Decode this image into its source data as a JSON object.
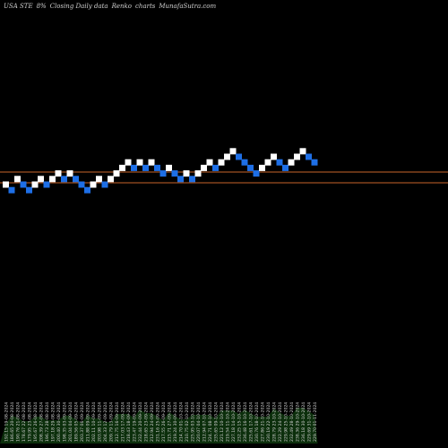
{
  "header": {
    "symbol": "USA STE",
    "change": "8%",
    "closing": "Closing Daily data",
    "renko": "Renko",
    "charts": "charts",
    "site": "MunafaSutra.com"
  },
  "colors": {
    "background": "#000000",
    "up_brick": "#ffffff",
    "down_brick": "#1e6fe6",
    "line": "#c8642a",
    "volume": "#0c2f0c",
    "label": "#d0d0d0"
  },
  "chart_data": {
    "type": "renko",
    "title": "USA STE 8% Closing Daily data Renko charts MunafaSutra.com",
    "price_lines": [
      "upper",
      "lower"
    ],
    "bricks": [
      {
        "dir": "up",
        "level": 0
      },
      {
        "dir": "down",
        "level": -1
      },
      {
        "dir": "up",
        "level": 1
      },
      {
        "dir": "down",
        "level": 0
      },
      {
        "dir": "down",
        "level": -1
      },
      {
        "dir": "up",
        "level": 0
      },
      {
        "dir": "up",
        "level": 1
      },
      {
        "dir": "down",
        "level": 0
      },
      {
        "dir": "up",
        "level": 1
      },
      {
        "dir": "up",
        "level": 2
      },
      {
        "dir": "down",
        "level": 1
      },
      {
        "dir": "up",
        "level": 2
      },
      {
        "dir": "down",
        "level": 1
      },
      {
        "dir": "down",
        "level": 0
      },
      {
        "dir": "down",
        "level": -1
      },
      {
        "dir": "up",
        "level": 0
      },
      {
        "dir": "up",
        "level": 1
      },
      {
        "dir": "down",
        "level": 0
      },
      {
        "dir": "up",
        "level": 1
      },
      {
        "dir": "up",
        "level": 2
      },
      {
        "dir": "up",
        "level": 3
      },
      {
        "dir": "up",
        "level": 4
      },
      {
        "dir": "down",
        "level": 3
      },
      {
        "dir": "up",
        "level": 4
      },
      {
        "dir": "down",
        "level": 3
      },
      {
        "dir": "up",
        "level": 4
      },
      {
        "dir": "down",
        "level": 3
      },
      {
        "dir": "down",
        "level": 2
      },
      {
        "dir": "up",
        "level": 3
      },
      {
        "dir": "down",
        "level": 2
      },
      {
        "dir": "down",
        "level": 1
      },
      {
        "dir": "up",
        "level": 2
      },
      {
        "dir": "down",
        "level": 1
      },
      {
        "dir": "up",
        "level": 2
      },
      {
        "dir": "up",
        "level": 3
      },
      {
        "dir": "up",
        "level": 4
      },
      {
        "dir": "down",
        "level": 3
      },
      {
        "dir": "up",
        "level": 4
      },
      {
        "dir": "up",
        "level": 5
      },
      {
        "dir": "up",
        "level": 6
      },
      {
        "dir": "down",
        "level": 5
      },
      {
        "dir": "down",
        "level": 4
      },
      {
        "dir": "down",
        "level": 3
      },
      {
        "dir": "down",
        "level": 2
      },
      {
        "dir": "up",
        "level": 3
      },
      {
        "dir": "up",
        "level": 4
      },
      {
        "dir": "up",
        "level": 5
      },
      {
        "dir": "down",
        "level": 4
      },
      {
        "dir": "down",
        "level": 3
      },
      {
        "dir": "up",
        "level": 4
      },
      {
        "dir": "up",
        "level": 5
      },
      {
        "dir": "up",
        "level": 6
      },
      {
        "dir": "down",
        "level": 5
      },
      {
        "dir": "down",
        "level": 4
      }
    ],
    "x_labels": [
      "192.15 19-08-2024",
      "186.65 20-08-2024",
      "190.76 21-08-2024",
      "178.67 22-08-2024",
      "179.95 23-08-2024",
      "195.67 26-08-2024",
      "208.39 27-08-2024",
      "196.73 28-08-2024",
      "197.18 29-08-2024",
      "200.40 30-08-2024",
      "198.35 03-09-2024",
      "201.04 04-09-2024",
      "189.56 05-09-2024",
      "203.37 06-09-2024",
      "211.88 09-09-2024",
      "202.11 10-09-2024",
      "203.98 11-09-2024",
      "204.33 12-09-2024",
      "209.79 13-09-2024",
      "212.75 16-09-2024",
      "217.03 17-09-2024",
      "218.43 18-09-2024",
      "223.47 19-09-2024",
      "232.44 20-09-2024",
      "218.65 23-09-2024",
      "212.94 24-09-2024",
      "231.16 25-09-2024",
      "217.55 26-09-2024",
      "215.71 27-09-2024",
      "219.24 30-09-2024",
      "214.70 01-10-2024",
      "210.75 02-10-2024",
      "225.95 03-10-2024",
      "220.07 04-10-2024",
      "212.94 07-10-2024",
      "224.71 08-10-2024",
      "235.65 09-10-2024",
      "221.12 10-10-2024",
      "219.54 11-10-2024",
      "227.18 14-10-2024",
      "232.25 15-10-2024",
      "236.48 16-10-2024",
      "225.61 17-10-2024",
      "230.76 18-10-2024",
      "227.86 21-10-2024",
      "230.19 22-10-2024",
      "228.79 23-10-2024",
      "222.29 24-10-2024",
      "229.98 25-10-2024",
      "232.49 28-10-2024",
      "238.36 29-10-2024",
      "236.18 30-10-2024",
      "229.69 31-10-2024",
      "229.70 01-11-2024"
    ]
  }
}
